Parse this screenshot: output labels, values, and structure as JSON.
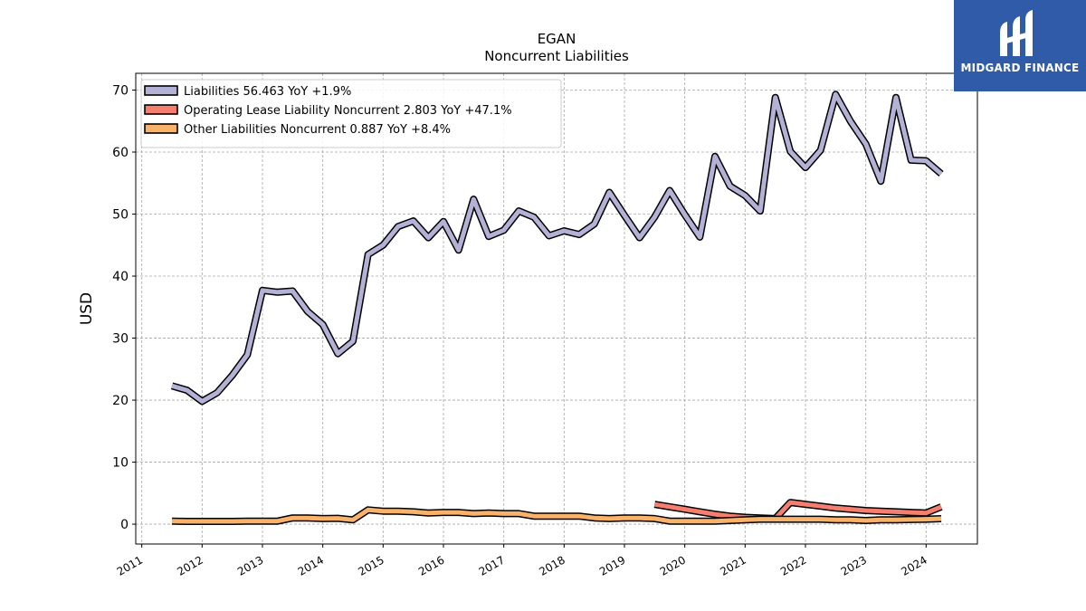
{
  "brand": {
    "name": "MIDGARD FINANCE",
    "bg_color": "#2f5ba8"
  },
  "chart_data": {
    "type": "line",
    "title": "EGAN",
    "subtitle": "Noncurrent  Liabilities",
    "xlabel": "",
    "ylabel": "USD",
    "xlim": [
      2010.9,
      2024.85
    ],
    "ylim": [
      -3.2,
      72.7
    ],
    "x_ticks": [
      2011,
      2012,
      2013,
      2014,
      2015,
      2016,
      2017,
      2018,
      2019,
      2020,
      2021,
      2022,
      2023,
      2024
    ],
    "y_ticks": [
      0,
      10,
      20,
      30,
      40,
      50,
      60,
      70
    ],
    "grid": true,
    "legend_position": "top-left",
    "series": [
      {
        "name": "Liabilities",
        "legend": "Liabilities  56.463 YoY +1.9%",
        "color": "#b4b1d6",
        "x": [
          2011.5,
          2011.75,
          2012.0,
          2012.25,
          2012.5,
          2012.75,
          2013.0,
          2013.25,
          2013.5,
          2013.75,
          2014.0,
          2014.25,
          2014.5,
          2014.75,
          2015.0,
          2015.25,
          2015.5,
          2015.75,
          2016.0,
          2016.25,
          2016.5,
          2016.75,
          2017.0,
          2017.25,
          2017.5,
          2017.75,
          2018.0,
          2018.25,
          2018.5,
          2018.75,
          2019.0,
          2019.25,
          2019.5,
          2019.75,
          2020.0,
          2020.25,
          2020.5,
          2020.75,
          2021.0,
          2021.25,
          2021.5,
          2021.75,
          2022.0,
          2022.25,
          2022.5,
          2022.75,
          2023.0,
          2023.25,
          2023.5,
          2023.75,
          2024.0,
          2024.25
        ],
        "values": [
          22.3,
          21.6,
          19.8,
          21.2,
          24.0,
          27.3,
          37.7,
          37.4,
          37.6,
          34.3,
          32.2,
          27.5,
          29.5,
          43.5,
          45.0,
          48.0,
          48.9,
          46.2,
          48.8,
          44.2,
          52.4,
          46.4,
          47.4,
          50.5,
          49.5,
          46.5,
          47.3,
          46.7,
          48.4,
          53.5,
          49.8,
          46.2,
          49.5,
          53.8,
          49.9,
          46.3,
          59.3,
          54.5,
          53.0,
          50.5,
          68.8,
          60.1,
          57.5,
          60.3,
          69.3,
          64.9,
          61.3,
          55.3,
          68.8,
          58.7,
          58.6,
          56.5
        ]
      },
      {
        "name": "Operating Lease Liability Noncurrent",
        "legend": "Operating Lease Liability Noncurrent  2.803 YoY +47.1%",
        "color": "#f47f6f",
        "x": [
          2019.5,
          2019.75,
          2020.0,
          2020.25,
          2020.5,
          2020.75,
          2021.0,
          2021.25,
          2021.5,
          2021.75,
          2022.0,
          2022.25,
          2022.5,
          2022.75,
          2023.0,
          2023.25,
          2023.5,
          2023.75,
          2024.0,
          2024.25
        ],
        "values": [
          3.2,
          2.8,
          2.4,
          2.0,
          1.6,
          1.3,
          1.1,
          1.0,
          0.9,
          3.5,
          3.2,
          2.9,
          2.6,
          2.4,
          2.2,
          2.1,
          2.0,
          1.9,
          1.8,
          2.8
        ]
      },
      {
        "name": "Other Liabilities Noncurrent",
        "legend": "Other Liabilities Noncurrent  0.887 YoY +8.4%",
        "color": "#f8b26a",
        "x": [
          2011.5,
          2011.75,
          2012.0,
          2012.25,
          2012.5,
          2012.75,
          2013.0,
          2013.25,
          2013.5,
          2013.75,
          2014.0,
          2014.25,
          2014.5,
          2014.75,
          2015.0,
          2015.25,
          2015.5,
          2015.75,
          2016.0,
          2016.25,
          2016.5,
          2016.75,
          2017.0,
          2017.25,
          2017.5,
          2017.75,
          2018.0,
          2018.25,
          2018.5,
          2018.75,
          2019.0,
          2019.25,
          2019.5,
          2019.75,
          2020.0,
          2020.25,
          2020.5,
          2020.75,
          2021.0,
          2021.25,
          2021.5,
          2021.75,
          2022.0,
          2022.25,
          2022.5,
          2022.75,
          2023.0,
          2023.25,
          2023.5,
          2023.75,
          2024.0,
          2024.25
        ],
        "values": [
          0.5,
          0.45,
          0.45,
          0.45,
          0.45,
          0.5,
          0.5,
          0.5,
          1.0,
          1.0,
          0.9,
          0.95,
          0.7,
          2.3,
          2.1,
          2.1,
          2.0,
          1.8,
          1.9,
          1.9,
          1.7,
          1.8,
          1.7,
          1.7,
          1.3,
          1.3,
          1.3,
          1.3,
          1.0,
          0.9,
          1.0,
          1.0,
          0.9,
          0.5,
          0.5,
          0.5,
          0.5,
          0.6,
          0.7,
          0.8,
          0.8,
          0.8,
          0.8,
          0.8,
          0.7,
          0.7,
          0.6,
          0.7,
          0.7,
          0.75,
          0.8,
          0.887
        ]
      }
    ]
  }
}
